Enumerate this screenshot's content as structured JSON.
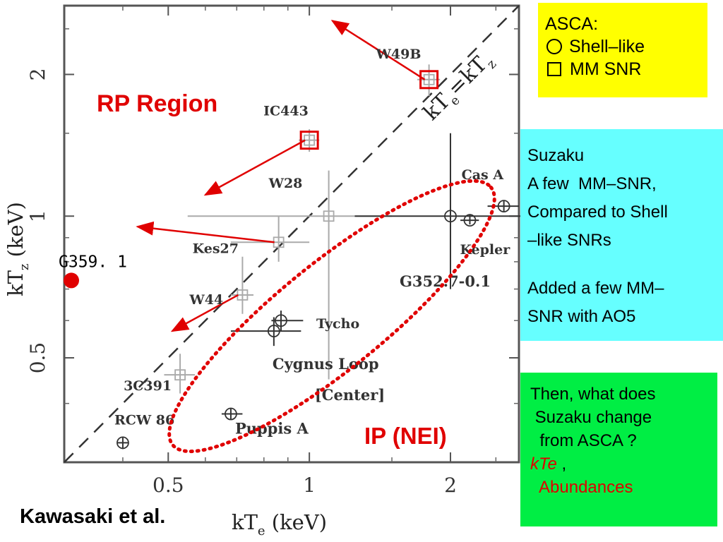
{
  "chart_data": {
    "type": "scatter",
    "xlabel": "kT_e (keV)",
    "ylabel": "kT_z (keV)",
    "xscale": "log",
    "yscale": "log",
    "xlim": [
      0.3,
      2.8
    ],
    "ylim": [
      0.3,
      2.8
    ],
    "xticks": [
      "0.5",
      "1",
      "2"
    ],
    "yticks": [
      "0.5",
      "1",
      "2"
    ],
    "diagonal_label": "kT_e=kT_z",
    "grid": false,
    "points": [
      {
        "label": "W49B",
        "x": 1.8,
        "y": 1.95,
        "xerr": [
          0.1,
          0.1
        ],
        "yerr": [
          0.15,
          0.15
        ],
        "marker": "square"
      },
      {
        "label": "IC443",
        "x": 1.0,
        "y": 1.45,
        "xerr": [
          0.05,
          0.05
        ],
        "yerr": [
          0.08,
          0.08
        ],
        "marker": "square"
      },
      {
        "label": "W28",
        "x": 1.1,
        "y": 1.0,
        "xerr": [
          0.55,
          0.4
        ],
        "yerr": [
          0.55,
          0.25
        ],
        "marker": "square"
      },
      {
        "label": "Kes27",
        "x": 0.86,
        "y": 0.88,
        "xerr": [
          0.18,
          0.14
        ],
        "yerr": [
          0.08,
          0.12
        ],
        "marker": "square"
      },
      {
        "label": "W44",
        "x": 0.72,
        "y": 0.68,
        "xerr": [
          0.04,
          0.04
        ],
        "yerr": [
          0.06,
          0.14
        ],
        "marker": "square"
      },
      {
        "label": "3C391",
        "x": 0.53,
        "y": 0.46,
        "xerr": [
          0.04,
          0.04
        ],
        "yerr": [
          0.04,
          0.05
        ],
        "marker": "square"
      },
      {
        "label": "Cas A",
        "x": 2.6,
        "y": 1.05,
        "xerr": [
          0.2,
          0.2
        ],
        "yerr": [
          0.03,
          0.03
        ],
        "marker": "circle"
      },
      {
        "label": "Kepler",
        "x": 2.2,
        "y": 0.98,
        "xerr": [
          0.1,
          0.1
        ],
        "yerr": [
          0.02,
          0.03
        ],
        "marker": "circle"
      },
      {
        "label": "G352.7-0.1",
        "x": 2.0,
        "y": 1.0,
        "xerr": [
          0.75,
          0.9
        ],
        "yerr": [
          0.3,
          0.5
        ],
        "marker": "circle"
      },
      {
        "label": "Tycho",
        "x": 0.87,
        "y": 0.6,
        "xerr": [
          0.04,
          0.1
        ],
        "yerr": [
          0.03,
          0.03
        ],
        "marker": "circle"
      },
      {
        "label": "Cygnus Loop [Center]",
        "x": 0.84,
        "y": 0.57,
        "xerr": [
          0.16,
          0.12
        ],
        "yerr": [
          0.04,
          0.04
        ],
        "marker": "circle"
      },
      {
        "label": "Puppis A",
        "x": 0.68,
        "y": 0.38,
        "xerr": [
          0.03,
          0.04
        ],
        "yerr": [
          0.01,
          0.01
        ],
        "marker": "circle"
      },
      {
        "label": "RCW 86",
        "x": 0.4,
        "y": 0.33,
        "xerr": [
          0.01,
          0.01
        ],
        "yerr": [
          0.01,
          0.01
        ],
        "marker": "circle"
      }
    ],
    "new_point": {
      "label": "G359. 1",
      "x": 0.3,
      "y": 0.73
    },
    "arrows": [
      {
        "from": "W49B",
        "to_x": 1.12,
        "to_y": 2.6
      },
      {
        "from": "IC443",
        "to_x": 0.6,
        "to_y": 1.11
      },
      {
        "from": "Kes27",
        "to_x": 0.43,
        "to_y": 0.95
      },
      {
        "from": "W44",
        "to_x": 0.51,
        "to_y": 0.57
      }
    ],
    "regions": [
      {
        "label": "RP Region"
      },
      {
        "label": "IP (NEI)"
      }
    ]
  },
  "boxes": {
    "asca": {
      "title": "ASCA:",
      "shell_like": "Shell–like",
      "mm_snr": "MM SNR",
      "color": "#ffff00"
    },
    "suzaku": {
      "line1": "Suzaku",
      "line2": "A few  MM–SNR,",
      "line3": "Compared to Shell",
      "line4": "–like SNRs",
      "line5": "Added a few MM–",
      "line6": "SNR with AO5",
      "color": "#66ffff"
    },
    "question": {
      "line1": "Then, what does",
      "line2": " Suzaku change",
      "line3": "  from ASCA ?",
      "kte": "kTe",
      "comma": " ,",
      "abundances": "  Abundances",
      "color": "#00ee44"
    }
  },
  "citation": "Kawasaki et al.",
  "colors": {
    "annotation_red": "#e00000",
    "axis": "#333333"
  }
}
